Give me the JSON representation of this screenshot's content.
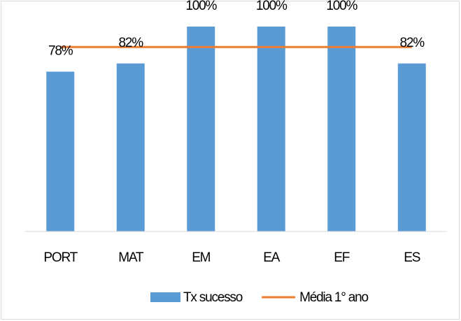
{
  "chart_data": {
    "type": "bar",
    "categories": [
      "PORT",
      "MAT",
      "EM",
      "EA",
      "EF",
      "ES"
    ],
    "series": [
      {
        "name": "Tx sucesso",
        "type": "bar",
        "color": "#5b9bd5",
        "values": [
          78,
          82,
          100,
          100,
          100,
          82
        ],
        "value_labels": [
          "78%",
          "82%",
          "100%",
          "100%",
          "100%",
          "82%"
        ]
      },
      {
        "name": "Média 1° ano",
        "type": "line",
        "color": "#ed7d31",
        "values": [
          90,
          90,
          90,
          90,
          90,
          90
        ]
      }
    ],
    "ylim": [
      0,
      100
    ],
    "legend": "bottom"
  }
}
